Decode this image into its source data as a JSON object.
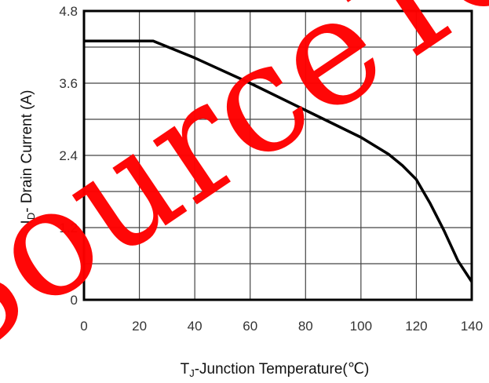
{
  "chart_data": {
    "type": "line",
    "title": "",
    "xlabel_main": "T",
    "xlabel_sub": "J",
    "xlabel_rest": "-Junction Temperature(℃)",
    "ylabel_main": "I",
    "ylabel_sub": "D",
    "ylabel_rest": "- Drain Current (A)",
    "xlim": [
      0,
      140
    ],
    "ylim": [
      0,
      4.8
    ],
    "x_ticks": [
      "0",
      "20",
      "40",
      "60",
      "80",
      "100",
      "120",
      "140"
    ],
    "y_ticks": [
      "0",
      "1.2",
      "2.4",
      "3.6",
      "4.8"
    ],
    "grid": true,
    "series": [
      {
        "color": "#000000",
        "x": [
          0,
          25,
          40,
          60,
          80,
          100,
          110,
          115,
          120,
          125,
          130,
          135,
          140
        ],
        "y": [
          4.3,
          4.3,
          4.02,
          3.6,
          3.15,
          2.7,
          2.42,
          2.23,
          2.0,
          1.6,
          1.15,
          0.65,
          0.3
        ]
      }
    ]
  },
  "watermark": {
    "text": "SourceTech",
    "color": "#ff0000"
  }
}
